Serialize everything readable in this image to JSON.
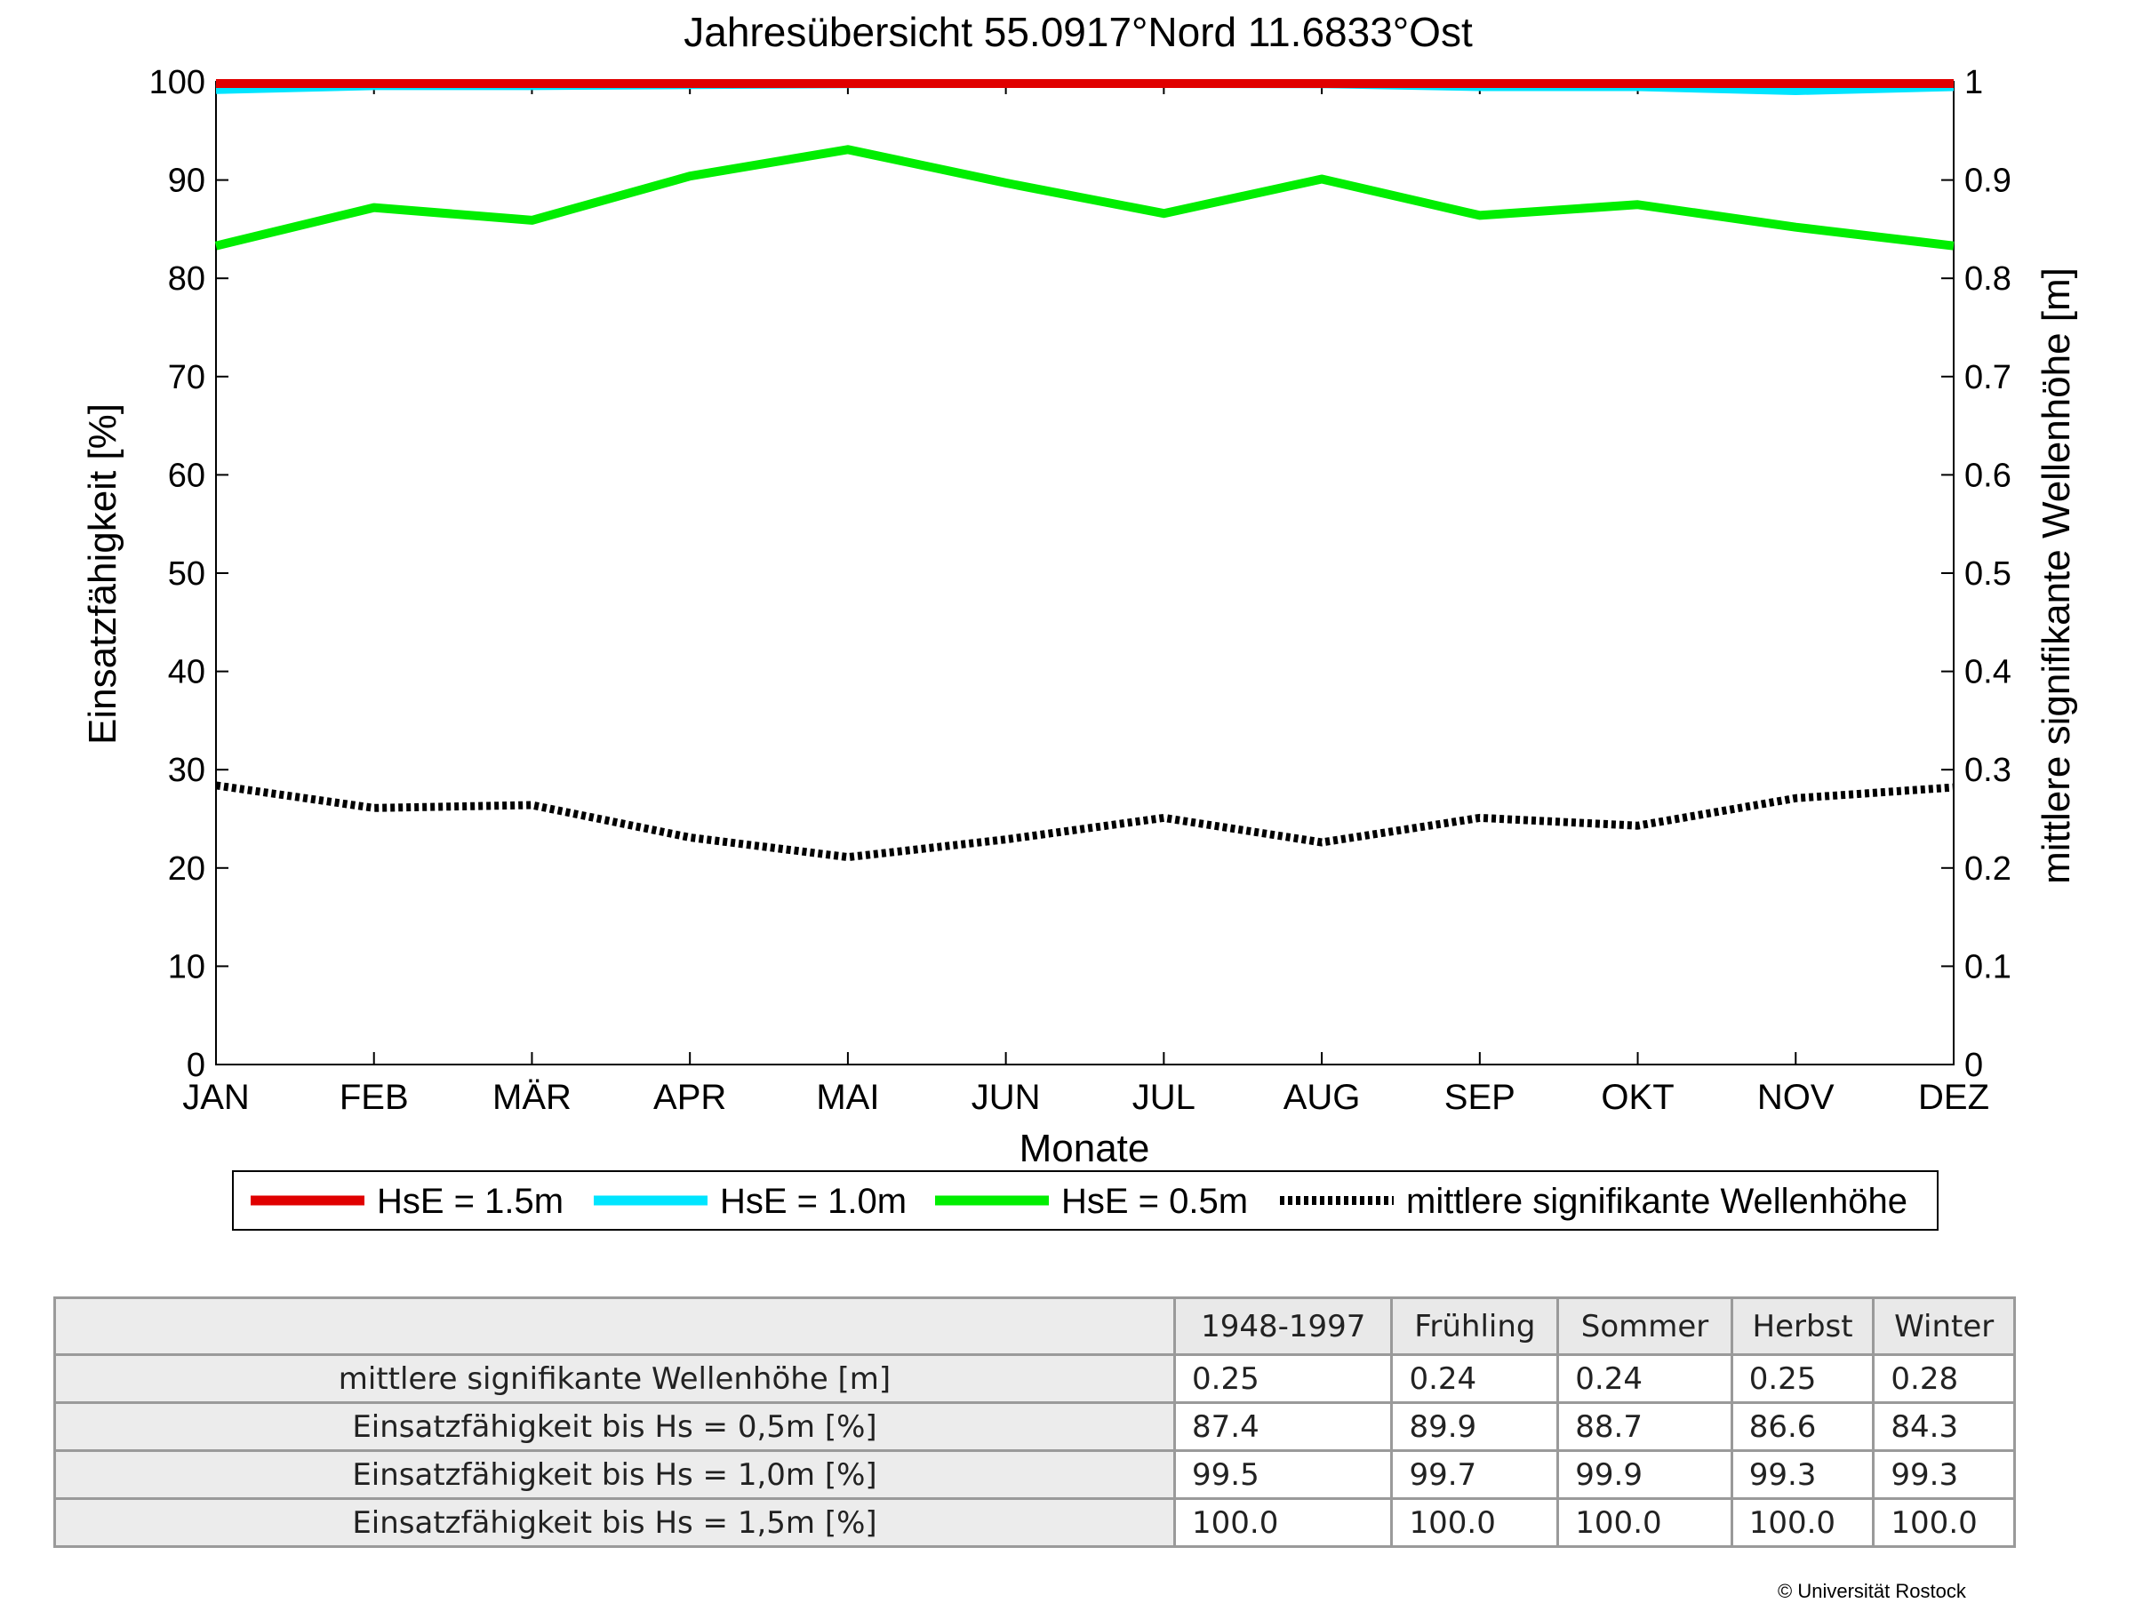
{
  "chart_data": {
    "type": "line",
    "title": "Jahresübersicht  55.0917°Nord  11.6833°Ost",
    "xlabel": "Monate",
    "ylabel": "Einsatzfähigkeit [%]",
    "y2label": "mittlere signifikante Wellenhöhe [m]",
    "categories": [
      "JAN",
      "FEB",
      "MÄR",
      "APR",
      "MAI",
      "JUN",
      "JUL",
      "AUG",
      "SEP",
      "OKT",
      "NOV",
      "DEZ"
    ],
    "ylim": [
      0,
      100
    ],
    "y2lim": [
      0,
      1
    ],
    "yticks": [
      "0",
      "10",
      "20",
      "30",
      "40",
      "50",
      "60",
      "70",
      "80",
      "90",
      "100"
    ],
    "y2ticks": [
      "0",
      "0.1",
      "0.2",
      "0.3",
      "0.4",
      "0.5",
      "0.6",
      "0.7",
      "0.8",
      "0.9",
      "1"
    ],
    "legend_position": "bottom",
    "grid": false,
    "series": [
      {
        "name": "HsE = 1.5m",
        "color": "#e00000",
        "axis": "left",
        "style": "solid",
        "values": [
          100,
          100,
          100,
          100,
          100,
          100,
          100,
          100,
          100,
          100,
          99.9,
          100
        ]
      },
      {
        "name": "HsE = 1.0m",
        "color": "#00e5ff",
        "axis": "left",
        "style": "solid",
        "values": [
          99.2,
          99.6,
          99.6,
          99.7,
          99.8,
          99.9,
          99.9,
          99.8,
          99.5,
          99.5,
          99.1,
          99.5
        ]
      },
      {
        "name": "HsE = 0.5m",
        "color": "#00ee00",
        "axis": "left",
        "style": "solid",
        "values": [
          83.3,
          87.2,
          85.9,
          90.4,
          93.1,
          89.7,
          86.6,
          90.1,
          86.4,
          87.5,
          85.2,
          83.3
        ]
      },
      {
        "name": "mittlere signifikante Wellenhöhe",
        "color": "#000000",
        "axis": "right",
        "style": "dotted",
        "values": [
          0.284,
          0.261,
          0.264,
          0.231,
          0.211,
          0.229,
          0.251,
          0.226,
          0.251,
          0.243,
          0.271,
          0.282
        ]
      }
    ]
  },
  "table": {
    "headers": [
      "",
      "1948-1997",
      "Frühling",
      "Sommer",
      "Herbst",
      "Winter"
    ],
    "rows": [
      {
        "label": "mittlere signifikante Wellenhöhe [m]",
        "values": [
          "0.25",
          "0.24",
          "0.24",
          "0.25",
          "0.28"
        ]
      },
      {
        "label": "Einsatzfähigkeit bis Hs = 0,5m [%]",
        "values": [
          "87.4",
          "89.9",
          "88.7",
          "86.6",
          "84.3"
        ]
      },
      {
        "label": "Einsatzfähigkeit bis Hs = 1,0m [%]",
        "values": [
          "99.5",
          "99.7",
          "99.9",
          "99.3",
          "99.3"
        ]
      },
      {
        "label": "Einsatzfähigkeit bis Hs = 1,5m [%]",
        "values": [
          "100.0",
          "100.0",
          "100.0",
          "100.0",
          "100.0"
        ]
      }
    ]
  },
  "copyright": "© Universität Rostock"
}
